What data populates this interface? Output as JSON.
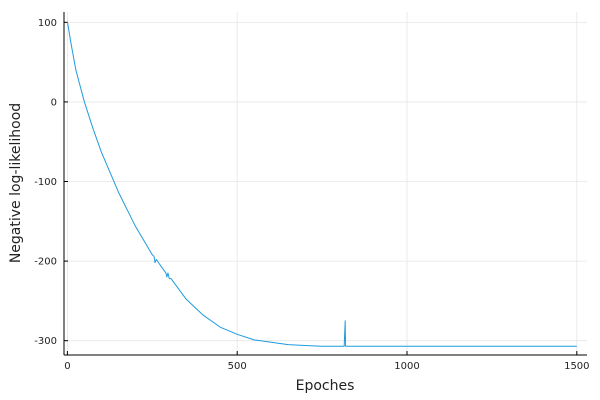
{
  "chart_data": {
    "type": "line",
    "xlabel": "Epoches",
    "ylabel": "Negative log-likelihood",
    "xlim": [
      -10,
      1530
    ],
    "ylim": [
      -318,
      113
    ],
    "xticks": [
      0,
      500,
      1000,
      1500
    ],
    "yticks": [
      100,
      0,
      -100,
      -200,
      -300
    ],
    "xtick_labels": [
      "0",
      "500",
      "1000",
      "1500"
    ],
    "ytick_labels": [
      "100",
      "0",
      "-100",
      "-200",
      "-300"
    ],
    "grid": true,
    "legend": "none",
    "series": [
      {
        "color": "#1f9bdc",
        "x": [
          0,
          10,
          25,
          50,
          75,
          100,
          150,
          200,
          250,
          255,
          258,
          262,
          270,
          290,
          293,
          296,
          300,
          305,
          350,
          400,
          450,
          500,
          550,
          600,
          650,
          700,
          750,
          800,
          815,
          818,
          819,
          820,
          821,
          822,
          825,
          850,
          900,
          1000,
          1100,
          1200,
          1300,
          1400,
          1500
        ],
        "y": [
          101,
          75,
          40,
          0,
          -33,
          -63,
          -113,
          -156,
          -192,
          -194,
          -202,
          -198,
          -203,
          -215,
          -220,
          -215,
          -222,
          -222,
          -248,
          -268,
          -283,
          -292,
          -299,
          -302,
          -305,
          -306,
          -307,
          -307,
          -307,
          -275,
          -307,
          -307,
          -307,
          -307,
          -307,
          -307,
          -307,
          -307,
          -307,
          -307,
          -307,
          -307,
          -307
        ]
      }
    ]
  }
}
